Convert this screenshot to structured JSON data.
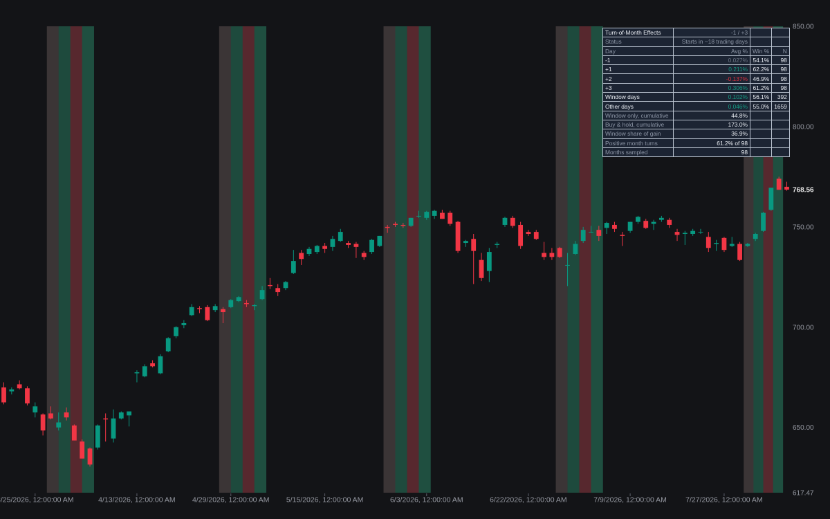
{
  "chart_data": {
    "type": "candlestick",
    "x_tick_labels": [
      "3/25/2026, 12:00:00 AM",
      "4/13/2026, 12:00:00 AM",
      "4/29/2026, 12:00:00 AM",
      "5/15/2026, 12:00:00 AM",
      "6/3/2026, 12:00:00 AM",
      "6/22/2026, 12:00:00 AM",
      "7/9/2026, 12:00:00 AM",
      "7/27/2026, 12:00:00 AM"
    ],
    "y_tick_labels": [
      "850.00",
      "800.00",
      "750.00",
      "700.00",
      "650.00",
      "617.47"
    ],
    "y_ticks": [
      850,
      800,
      750,
      700,
      650,
      617.47
    ],
    "last_price_label": "768.56",
    "last_price": 768.56,
    "ylim": [
      617.47,
      850
    ],
    "colors": {
      "up": "#089981",
      "down": "#f23645",
      "background": "#131417"
    },
    "turn_of_month_windows": [
      {
        "start": "3/27/2026",
        "end": "4/3/2026"
      },
      {
        "start": "4/28/2026",
        "end": "5/5/2026"
      },
      {
        "start": "5/27/2026",
        "end": "6/3/2026"
      },
      {
        "start": "6/26/2026",
        "end": "7/3/2026"
      },
      {
        "start": "7/30/2026",
        "end": "8/5/2026"
      }
    ],
    "candles": [
      {
        "date": "3/19/2026",
        "o": 670.0,
        "h": 672.5,
        "l": 661.5,
        "c": 662.5
      },
      {
        "date": "3/20/2026",
        "o": 668.0,
        "h": 670.0,
        "l": 666.5,
        "c": 669.0
      },
      {
        "date": "3/23/2026",
        "o": 671.5,
        "h": 673.5,
        "l": 669.0,
        "c": 669.5
      },
      {
        "date": "3/24/2026",
        "o": 669.5,
        "h": 670.5,
        "l": 661.0,
        "c": 662.0
      },
      {
        "date": "3/25/2026",
        "o": 657.5,
        "h": 662.5,
        "l": 655.0,
        "c": 660.5
      },
      {
        "date": "3/26/2026",
        "o": 656.5,
        "h": 657.0,
        "l": 646.0,
        "c": 648.5
      },
      {
        "date": "3/27/2026",
        "o": 657.0,
        "h": 660.5,
        "l": 654.0,
        "c": 654.5
      },
      {
        "date": "3/30/2026",
        "o": 650.0,
        "h": 657.5,
        "l": 648.5,
        "c": 652.5
      },
      {
        "date": "3/31/2026",
        "o": 657.5,
        "h": 660.0,
        "l": 653.5,
        "c": 655.0
      },
      {
        "date": "4/1/2026",
        "o": 651.0,
        "h": 651.5,
        "l": 643.5,
        "c": 643.5
      },
      {
        "date": "4/2/2026",
        "o": 643.0,
        "h": 644.0,
        "l": 634.5,
        "c": 634.5
      },
      {
        "date": "4/3/2026",
        "o": 639.5,
        "h": 640.0,
        "l": 630.5,
        "c": 631.5
      },
      {
        "date": "4/6/2026",
        "o": 640.0,
        "h": 651.5,
        "l": 639.0,
        "c": 651.0
      },
      {
        "date": "4/7/2026",
        "o": 654.5,
        "h": 657.0,
        "l": 643.0,
        "c": 654.0
      },
      {
        "date": "4/8/2026",
        "o": 644.5,
        "h": 659.0,
        "l": 642.5,
        "c": 654.5
      },
      {
        "date": "4/9/2026",
        "o": 654.5,
        "h": 658.0,
        "l": 654.0,
        "c": 657.5
      },
      {
        "date": "4/10/2026",
        "o": 656.0,
        "h": 658.0,
        "l": 650.5,
        "c": 658.0
      },
      {
        "date": "4/13/2026",
        "o": 677.0,
        "h": 678.5,
        "l": 672.5,
        "c": 677.5
      },
      {
        "date": "4/14/2026",
        "o": 675.5,
        "h": 681.5,
        "l": 675.0,
        "c": 680.5
      },
      {
        "date": "4/15/2026",
        "o": 682.0,
        "h": 683.5,
        "l": 680.0,
        "c": 680.5
      },
      {
        "date": "4/16/2026",
        "o": 677.0,
        "h": 686.5,
        "l": 676.5,
        "c": 685.5
      },
      {
        "date": "4/17/2026",
        "o": 688.0,
        "h": 695.0,
        "l": 687.5,
        "c": 694.5
      },
      {
        "date": "4/20/2026",
        "o": 695.5,
        "h": 700.5,
        "l": 694.5,
        "c": 700.0
      },
      {
        "date": "4/21/2026",
        "o": 701.0,
        "h": 703.5,
        "l": 699.5,
        "c": 702.0
      },
      {
        "date": "4/22/2026",
        "o": 706.0,
        "h": 711.5,
        "l": 705.5,
        "c": 710.0
      },
      {
        "date": "4/23/2026",
        "o": 709.5,
        "h": 710.5,
        "l": 707.0,
        "c": 709.0
      },
      {
        "date": "4/24/2026",
        "o": 710.0,
        "h": 711.0,
        "l": 703.0,
        "c": 703.5
      },
      {
        "date": "4/27/2026",
        "o": 708.5,
        "h": 711.5,
        "l": 707.5,
        "c": 710.5
      },
      {
        "date": "4/28/2026",
        "o": 709.0,
        "h": 710.0,
        "l": 702.0,
        "c": 707.5
      },
      {
        "date": "4/29/2026",
        "o": 710.0,
        "h": 714.0,
        "l": 709.5,
        "c": 713.5
      },
      {
        "date": "4/30/2026",
        "o": 713.0,
        "h": 715.5,
        "l": 712.5,
        "c": 715.0
      },
      {
        "date": "5/1/2026",
        "o": 712.0,
        "h": 713.5,
        "l": 710.0,
        "c": 711.5
      },
      {
        "date": "5/4/2026",
        "o": 710.5,
        "h": 711.5,
        "l": 708.5,
        "c": 711.0
      },
      {
        "date": "5/5/2026",
        "o": 714.0,
        "h": 720.5,
        "l": 713.5,
        "c": 718.5
      },
      {
        "date": "5/6/2026",
        "o": 721.0,
        "h": 724.5,
        "l": 719.0,
        "c": 720.5
      },
      {
        "date": "5/7/2026",
        "o": 719.5,
        "h": 721.5,
        "l": 715.5,
        "c": 717.5
      },
      {
        "date": "5/8/2026",
        "o": 719.5,
        "h": 723.0,
        "l": 718.5,
        "c": 722.5
      },
      {
        "date": "5/11/2026",
        "o": 727.0,
        "h": 738.5,
        "l": 726.5,
        "c": 733.0
      },
      {
        "date": "5/12/2026",
        "o": 737.0,
        "h": 738.5,
        "l": 731.0,
        "c": 734.0
      },
      {
        "date": "5/13/2026",
        "o": 736.5,
        "h": 740.0,
        "l": 735.5,
        "c": 739.0
      },
      {
        "date": "5/14/2026",
        "o": 737.5,
        "h": 741.0,
        "l": 736.5,
        "c": 740.5
      },
      {
        "date": "5/15/2026",
        "o": 740.5,
        "h": 742.0,
        "l": 737.0,
        "c": 739.0
      },
      {
        "date": "5/18/2026",
        "o": 740.0,
        "h": 745.5,
        "l": 738.0,
        "c": 744.0
      },
      {
        "date": "5/19/2026",
        "o": 743.0,
        "h": 749.0,
        "l": 742.5,
        "c": 747.5
      },
      {
        "date": "5/20/2026",
        "o": 742.0,
        "h": 743.0,
        "l": 739.5,
        "c": 741.0
      },
      {
        "date": "5/21/2026",
        "o": 741.5,
        "h": 742.5,
        "l": 734.5,
        "c": 740.0
      },
      {
        "date": "5/22/2026",
        "o": 737.0,
        "h": 738.0,
        "l": 733.5,
        "c": 735.0
      },
      {
        "date": "5/25/2026",
        "o": 737.5,
        "h": 744.0,
        "l": 736.5,
        "c": 743.5
      },
      {
        "date": "5/26/2026",
        "o": 740.5,
        "h": 745.5,
        "l": 740.0,
        "c": 745.5
      },
      {
        "date": "5/27/2026",
        "o": 750.0,
        "h": 751.0,
        "l": 747.0,
        "c": 749.5
      },
      {
        "date": "5/28/2026",
        "o": 751.5,
        "h": 752.5,
        "l": 750.0,
        "c": 751.0
      },
      {
        "date": "5/29/2026",
        "o": 751.0,
        "h": 752.0,
        "l": 749.5,
        "c": 750.5
      },
      {
        "date": "6/1/2026",
        "o": 750.5,
        "h": 754.5,
        "l": 750.0,
        "c": 754.5
      },
      {
        "date": "6/2/2026",
        "o": 755.5,
        "h": 758.0,
        "l": 754.5,
        "c": 755.5
      },
      {
        "date": "6/3/2026",
        "o": 754.5,
        "h": 758.0,
        "l": 753.5,
        "c": 757.5
      },
      {
        "date": "6/4/2026",
        "o": 755.5,
        "h": 758.5,
        "l": 754.0,
        "c": 758.0
      },
      {
        "date": "6/5/2026",
        "o": 757.0,
        "h": 758.5,
        "l": 754.0,
        "c": 754.0
      },
      {
        "date": "6/8/2026",
        "o": 757.0,
        "h": 758.0,
        "l": 750.5,
        "c": 751.5
      },
      {
        "date": "6/9/2026",
        "o": 752.5,
        "h": 753.0,
        "l": 737.0,
        "c": 738.0
      },
      {
        "date": "6/10/2026",
        "o": 742.0,
        "h": 743.5,
        "l": 740.0,
        "c": 743.0
      },
      {
        "date": "6/11/2026",
        "o": 744.0,
        "h": 746.5,
        "l": 721.5,
        "c": 738.0
      },
      {
        "date": "6/12/2026",
        "o": 733.5,
        "h": 737.0,
        "l": 723.0,
        "c": 724.5
      },
      {
        "date": "6/15/2026",
        "o": 728.0,
        "h": 739.5,
        "l": 722.5,
        "c": 737.5
      },
      {
        "date": "6/16/2026",
        "o": 741.0,
        "h": 742.5,
        "l": 739.5,
        "c": 741.5
      },
      {
        "date": "6/17/2026",
        "o": 751.0,
        "h": 755.0,
        "l": 750.0,
        "c": 754.5
      },
      {
        "date": "6/18/2026",
        "o": 754.5,
        "h": 755.5,
        "l": 749.5,
        "c": 750.5
      },
      {
        "date": "6/19/2026",
        "o": 751.0,
        "h": 752.5,
        "l": 739.0,
        "c": 740.5
      },
      {
        "date": "6/22/2026",
        "o": 747.5,
        "h": 748.5,
        "l": 745.5,
        "c": 746.5
      },
      {
        "date": "6/23/2026",
        "o": 747.5,
        "h": 748.5,
        "l": 743.5,
        "c": 744.0
      },
      {
        "date": "6/24/2026",
        "o": 737.0,
        "h": 742.5,
        "l": 733.5,
        "c": 735.0
      },
      {
        "date": "6/25/2026",
        "o": 737.0,
        "h": 739.5,
        "l": 733.5,
        "c": 735.0
      },
      {
        "date": "6/26/2026",
        "o": 739.5,
        "h": 740.0,
        "l": 734.5,
        "c": 735.0
      },
      {
        "date": "6/29/2026",
        "o": 731.0,
        "h": 737.0,
        "l": 720.5,
        "c": 731.0
      },
      {
        "date": "6/30/2026",
        "o": 736.5,
        "h": 743.0,
        "l": 736.0,
        "c": 741.5
      },
      {
        "date": "7/1/2026",
        "o": 743.0,
        "h": 750.0,
        "l": 742.0,
        "c": 748.5
      },
      {
        "date": "7/2/2026",
        "o": 747.5,
        "h": 750.5,
        "l": 747.0,
        "c": 747.5
      },
      {
        "date": "7/3/2026",
        "o": 748.5,
        "h": 750.5,
        "l": 743.0,
        "c": 745.5
      },
      {
        "date": "7/6/2026",
        "o": 749.5,
        "h": 752.5,
        "l": 746.5,
        "c": 752.0
      },
      {
        "date": "7/7/2026",
        "o": 751.0,
        "h": 752.5,
        "l": 747.5,
        "c": 749.0
      },
      {
        "date": "7/8/2026",
        "o": 746.0,
        "h": 747.5,
        "l": 740.5,
        "c": 745.5
      },
      {
        "date": "7/9/2026",
        "o": 748.0,
        "h": 752.5,
        "l": 747.0,
        "c": 752.5
      },
      {
        "date": "7/10/2026",
        "o": 752.5,
        "h": 755.5,
        "l": 751.5,
        "c": 755.0
      },
      {
        "date": "7/13/2026",
        "o": 753.0,
        "h": 754.0,
        "l": 749.0,
        "c": 749.5
      },
      {
        "date": "7/14/2026",
        "o": 751.5,
        "h": 753.5,
        "l": 748.5,
        "c": 752.5
      },
      {
        "date": "7/15/2026",
        "o": 753.5,
        "h": 755.5,
        "l": 752.5,
        "c": 754.5
      },
      {
        "date": "7/16/2026",
        "o": 753.5,
        "h": 754.5,
        "l": 749.5,
        "c": 751.0
      },
      {
        "date": "7/17/2026",
        "o": 747.5,
        "h": 749.0,
        "l": 743.0,
        "c": 746.0
      },
      {
        "date": "7/20/2026",
        "o": 746.5,
        "h": 748.0,
        "l": 741.0,
        "c": 747.0
      },
      {
        "date": "7/21/2026",
        "o": 746.5,
        "h": 749.0,
        "l": 745.5,
        "c": 748.0
      },
      {
        "date": "7/22/2026",
        "o": 747.5,
        "h": 749.0,
        "l": 746.5,
        "c": 747.5
      },
      {
        "date": "7/23/2026",
        "o": 745.0,
        "h": 747.5,
        "l": 737.5,
        "c": 739.5
      },
      {
        "date": "7/24/2026",
        "o": 741.5,
        "h": 743.5,
        "l": 738.0,
        "c": 742.0
      },
      {
        "date": "7/27/2026",
        "o": 744.5,
        "h": 745.0,
        "l": 737.5,
        "c": 738.5
      },
      {
        "date": "7/28/2026",
        "o": 740.5,
        "h": 745.0,
        "l": 740.0,
        "c": 741.5
      },
      {
        "date": "7/29/2026",
        "o": 741.5,
        "h": 742.5,
        "l": 733.0,
        "c": 733.5
      },
      {
        "date": "7/30/2026",
        "o": 740.5,
        "h": 742.0,
        "l": 740.0,
        "c": 741.5
      },
      {
        "date": "7/31/2026",
        "o": 744.0,
        "h": 747.0,
        "l": 743.0,
        "c": 746.5
      },
      {
        "date": "8/3/2026",
        "o": 748.0,
        "h": 757.5,
        "l": 747.5,
        "c": 757.0
      },
      {
        "date": "8/4/2026",
        "o": 758.5,
        "h": 769.5,
        "l": 758.0,
        "c": 769.5
      },
      {
        "date": "8/5/2026",
        "o": 774.0,
        "h": 775.0,
        "l": 768.5,
        "c": 768.5
      },
      {
        "date": "8/6/2026",
        "o": 770.0,
        "h": 772.5,
        "l": 768.0,
        "c": 768.56
      }
    ]
  },
  "table": {
    "header": {
      "title": "Turn-of-Month Effects",
      "window": "-1 / +3"
    },
    "status": {
      "label": "Status",
      "value": "Starts in ~18 trading days"
    },
    "columns": {
      "day": "Day",
      "avg": "Avg %",
      "win": "Win %",
      "n": "N"
    },
    "day_rows": [
      {
        "day": "-1",
        "avg": "0.027%",
        "win": "54.1%",
        "n": "98",
        "tone": "dim"
      },
      {
        "day": "+1",
        "avg": "0.211%",
        "win": "62.2%",
        "n": "98",
        "tone": "pos"
      },
      {
        "day": "+2",
        "avg": "-0.137%",
        "win": "46.9%",
        "n": "98",
        "tone": "neg"
      },
      {
        "day": "+3",
        "avg": "0.306%",
        "win": "61.2%",
        "n": "98",
        "tone": "pos"
      },
      {
        "day": "Window days",
        "avg": "0.102%",
        "win": "56.1%",
        "n": "392",
        "tone": "pos"
      },
      {
        "day": "Other days",
        "avg": "0.046%",
        "win": "55.0%",
        "n": "1659",
        "tone": "pos"
      }
    ],
    "summary_rows": [
      {
        "label": "Window only, cumulative",
        "value": "44.8%"
      },
      {
        "label": "Buy & hold, cumulative",
        "value": "173.0%"
      },
      {
        "label": "Window share of gain",
        "value": "36.9%"
      },
      {
        "label": "Positive month turns",
        "value": "61.2% of 98"
      },
      {
        "label": "Months sampled",
        "value": "98"
      }
    ]
  }
}
